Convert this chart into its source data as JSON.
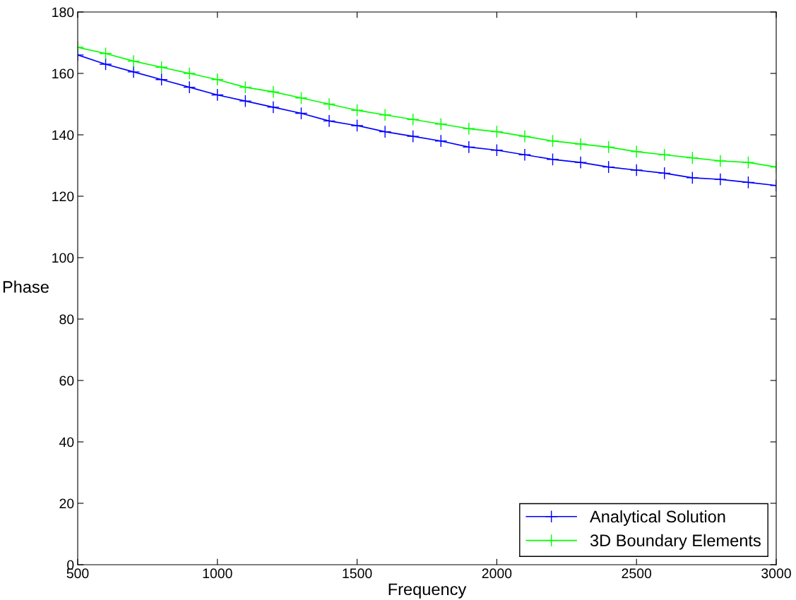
{
  "chart_data": {
    "type": "line",
    "xlabel": "Frequency",
    "ylabel": "Phase",
    "x": [
      500,
      600,
      700,
      800,
      900,
      1000,
      1100,
      1200,
      1300,
      1400,
      1500,
      1600,
      1700,
      1800,
      1900,
      2000,
      2100,
      2200,
      2300,
      2400,
      2500,
      2600,
      2700,
      2800,
      2900,
      3000
    ],
    "series": [
      {
        "name": "Analytical Solution",
        "color": "#0000ff",
        "values": [
          166,
          163,
          160.5,
          158,
          155.5,
          153,
          151,
          149,
          147,
          144.5,
          143,
          141,
          139.5,
          138,
          136,
          135,
          133.5,
          132,
          131,
          129.5,
          128.5,
          127.5,
          126,
          125.5,
          124.5,
          123.5
        ]
      },
      {
        "name": "3D Boundary Elements",
        "color": "#00ff00",
        "values": [
          168.5,
          166.5,
          164,
          162,
          160,
          158,
          155.5,
          154,
          152,
          150,
          148,
          146.5,
          145,
          143.5,
          142,
          141,
          139.5,
          138,
          137,
          136,
          134.5,
          133.5,
          132.5,
          131.5,
          131,
          129.5
        ]
      }
    ],
    "xlim": [
      500,
      3000
    ],
    "xticks": [
      500,
      1000,
      1500,
      2000,
      2500,
      3000
    ],
    "ylim": [
      0,
      180
    ],
    "yticks": [
      0,
      20,
      40,
      60,
      80,
      100,
      120,
      140,
      160,
      180
    ],
    "grid": false,
    "legend": "bottom right",
    "marker": "cross",
    "line_style": "solid"
  }
}
